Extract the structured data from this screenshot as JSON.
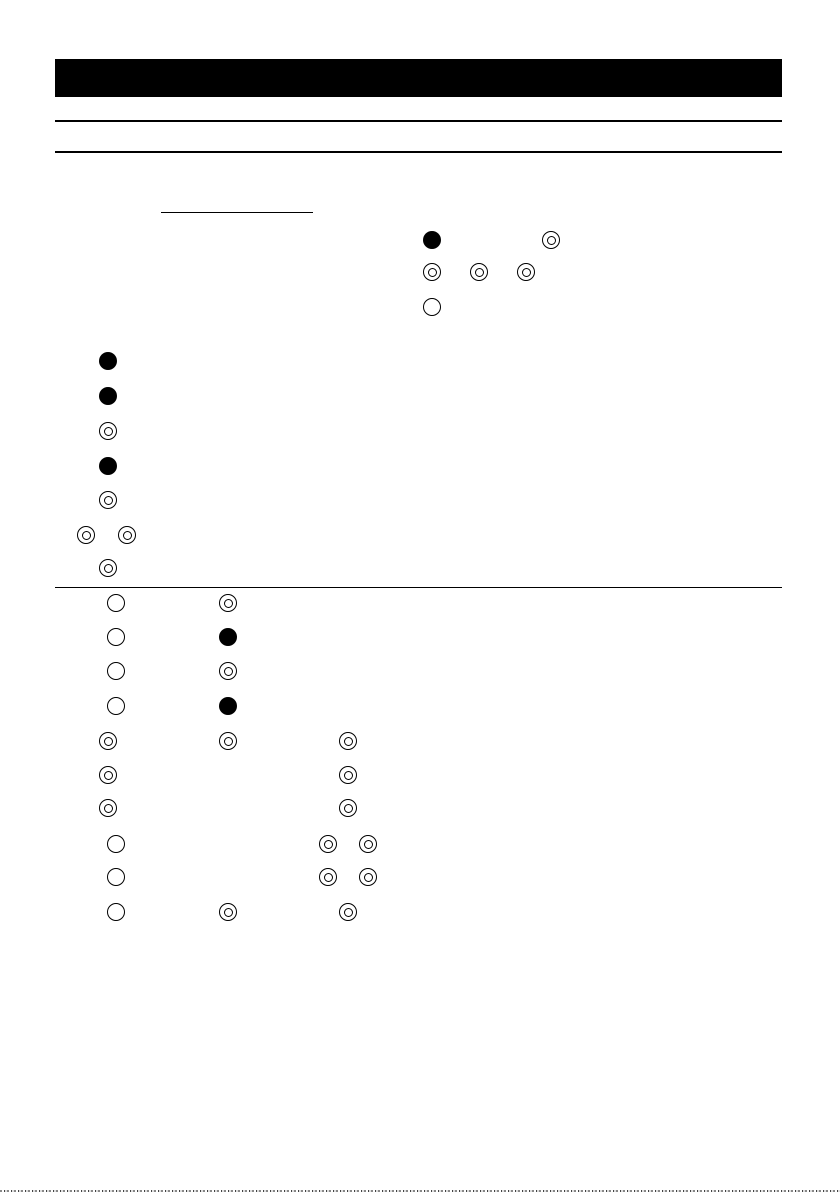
{
  "symbol_legend": {
    "filled": "●",
    "double": "◎",
    "empty": "○"
  }
}
